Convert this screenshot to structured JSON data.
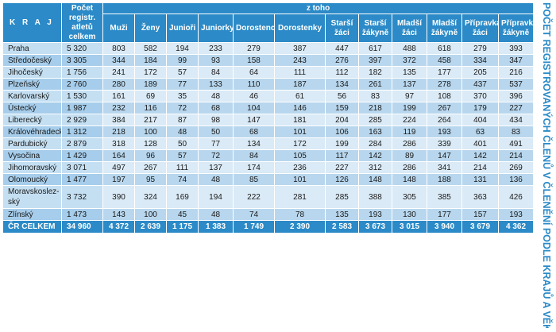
{
  "side_title": "POČET REGISTROVANÝCH ČLENŮ V ČLENĚNÍ PODLE KRAJŮ A VĚKOVÝCH KATEGORIÍ",
  "header": {
    "kraj": "K R A J",
    "total": "Počet registr. atletů celkem",
    "group": "z toho",
    "columns": [
      "Muži",
      "Ženy",
      "Junioři",
      "Juniorky",
      "Dorostenci",
      "Dorostenky",
      "Starší žáci",
      "Starší žákyně",
      "Mladší žáci",
      "Mladší žákyně",
      "Přípravka žáci",
      "Přípravka žákyně"
    ]
  },
  "rows": [
    {
      "name": "Praha",
      "total": "5 320",
      "values": [
        "803",
        "582",
        "194",
        "233",
        "279",
        "387",
        "447",
        "617",
        "488",
        "618",
        "279",
        "393"
      ]
    },
    {
      "name": "Středočeský",
      "total": "3 305",
      "values": [
        "344",
        "184",
        "99",
        "93",
        "158",
        "243",
        "276",
        "397",
        "372",
        "458",
        "334",
        "347"
      ]
    },
    {
      "name": "Jihočeský",
      "total": "1 756",
      "values": [
        "241",
        "172",
        "57",
        "84",
        "64",
        "111",
        "112",
        "182",
        "135",
        "177",
        "205",
        "216"
      ]
    },
    {
      "name": "Plzeňský",
      "total": "2 760",
      "values": [
        "280",
        "189",
        "77",
        "133",
        "110",
        "187",
        "134",
        "261",
        "137",
        "278",
        "437",
        "537"
      ]
    },
    {
      "name": "Karlovarský",
      "total": "1 530",
      "values": [
        "161",
        "69",
        "35",
        "48",
        "46",
        "61",
        "56",
        "83",
        "97",
        "108",
        "370",
        "396"
      ]
    },
    {
      "name": "Ústecký",
      "total": "1 987",
      "values": [
        "232",
        "116",
        "72",
        "68",
        "104",
        "146",
        "159",
        "218",
        "199",
        "267",
        "179",
        "227"
      ]
    },
    {
      "name": "Liberecký",
      "total": "2 929",
      "values": [
        "384",
        "217",
        "87",
        "98",
        "147",
        "181",
        "204",
        "285",
        "224",
        "264",
        "404",
        "434"
      ]
    },
    {
      "name": "Královéhradecký",
      "total": "1 312",
      "values": [
        "218",
        "100",
        "48",
        "50",
        "68",
        "101",
        "106",
        "163",
        "119",
        "193",
        "63",
        "83"
      ]
    },
    {
      "name": "Pardubický",
      "total": "2 879",
      "values": [
        "318",
        "128",
        "50",
        "77",
        "134",
        "172",
        "199",
        "284",
        "286",
        "339",
        "401",
        "491"
      ]
    },
    {
      "name": "Vysočina",
      "total": "1 429",
      "values": [
        "164",
        "96",
        "57",
        "72",
        "84",
        "105",
        "117",
        "142",
        "89",
        "147",
        "142",
        "214"
      ]
    },
    {
      "name": "Jihomoravský",
      "total": "3 071",
      "values": [
        "497",
        "267",
        "111",
        "137",
        "174",
        "236",
        "227",
        "312",
        "286",
        "341",
        "214",
        "269"
      ]
    },
    {
      "name": "Olomoucký",
      "total": "1 477",
      "values": [
        "197",
        "95",
        "74",
        "48",
        "85",
        "101",
        "126",
        "148",
        "148",
        "188",
        "131",
        "136"
      ]
    },
    {
      "name": "Moravskoslez-ský",
      "total": "3 732",
      "values": [
        "390",
        "324",
        "169",
        "194",
        "222",
        "281",
        "285",
        "388",
        "305",
        "385",
        "363",
        "426"
      ]
    },
    {
      "name": "Zlínský",
      "total": "1 473",
      "values": [
        "143",
        "100",
        "45",
        "48",
        "74",
        "78",
        "135",
        "193",
        "130",
        "177",
        "157",
        "193"
      ]
    }
  ],
  "footer": {
    "name": "ČR CELKEM",
    "total": "34 960",
    "values": [
      "4 372",
      "2 639",
      "1 175",
      "1 383",
      "1 749",
      "2 390",
      "2 583",
      "3 673",
      "3 015",
      "3 940",
      "3 679",
      "4 362"
    ]
  }
}
